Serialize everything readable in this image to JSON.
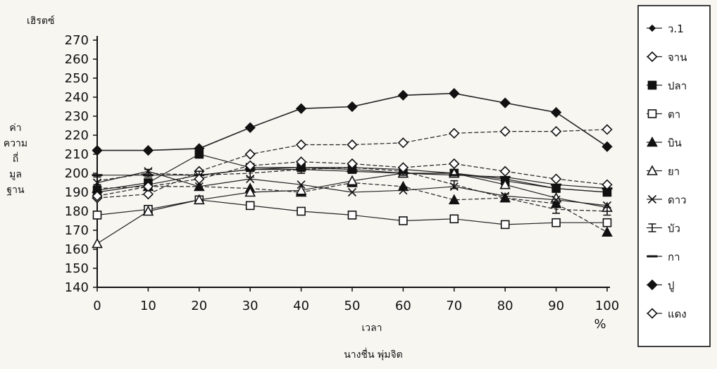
{
  "chart_data": {
    "type": "line",
    "ylabel_top": "เฮิรตซ์",
    "ylabel_side": [
      "ค่า",
      "ความ",
      "ถี่",
      "มูล",
      "ฐาน"
    ],
    "xlabel": "เวลา",
    "x_unit": "%",
    "caption": "นางชื่น พุ่มจิต",
    "x": [
      0,
      10,
      20,
      30,
      40,
      50,
      60,
      70,
      80,
      90,
      100
    ],
    "xlim": [
      0,
      100
    ],
    "ylim": [
      140,
      270
    ],
    "yticks": [
      140,
      150,
      160,
      170,
      180,
      190,
      200,
      210,
      220,
      230,
      240,
      250,
      260,
      270
    ],
    "legend_position": "right",
    "series": [
      {
        "name": "ว.1",
        "marker": "dash-diamond",
        "values": [
          190,
          194,
          199,
          202,
          203,
          203,
          202,
          200,
          197,
          192,
          190
        ]
      },
      {
        "name": "จาน",
        "marker": "open-diamond",
        "values": [
          187,
          189,
          201,
          210,
          215,
          215,
          216,
          221,
          222,
          222,
          223
        ]
      },
      {
        "name": "ปลา",
        "marker": "filled-square",
        "values": [
          191,
          195,
          210,
          203,
          203,
          202,
          200,
          200,
          196,
          192,
          190
        ]
      },
      {
        "name": "ตา",
        "marker": "open-square",
        "values": [
          178,
          181,
          186,
          183,
          180,
          178,
          175,
          176,
          173,
          174,
          174
        ]
      },
      {
        "name": "บิน",
        "marker": "filled-triangle",
        "values": [
          192,
          193,
          193,
          192,
          190,
          195,
          193,
          186,
          187,
          184,
          169
        ]
      },
      {
        "name": "ยา",
        "marker": "open-triangle",
        "values": [
          163,
          180,
          186,
          190,
          191,
          196,
          200,
          200,
          194,
          187,
          182
        ]
      },
      {
        "name": "ดาว",
        "marker": "x",
        "values": [
          195,
          201,
          193,
          197,
          194,
          190,
          191,
          193,
          188,
          186,
          183
        ]
      },
      {
        "name": "บัว",
        "marker": "i-bar",
        "values": [
          196,
          200,
          199,
          200,
          202,
          203,
          201,
          194,
          187,
          181,
          180
        ]
      },
      {
        "name": "กา",
        "marker": "dash",
        "values": [
          199,
          199,
          199,
          202,
          202,
          201,
          200,
          199,
          198,
          194,
          192
        ]
      },
      {
        "name": "ปู",
        "marker": "filled-diamond",
        "values": [
          212,
          212,
          213,
          224,
          234,
          235,
          241,
          242,
          237,
          232,
          214
        ]
      },
      {
        "name": "แดง",
        "marker": "open-diamond",
        "values": [
          188,
          193,
          197,
          204,
          206,
          205,
          203,
          205,
          201,
          197,
          194
        ]
      }
    ]
  }
}
